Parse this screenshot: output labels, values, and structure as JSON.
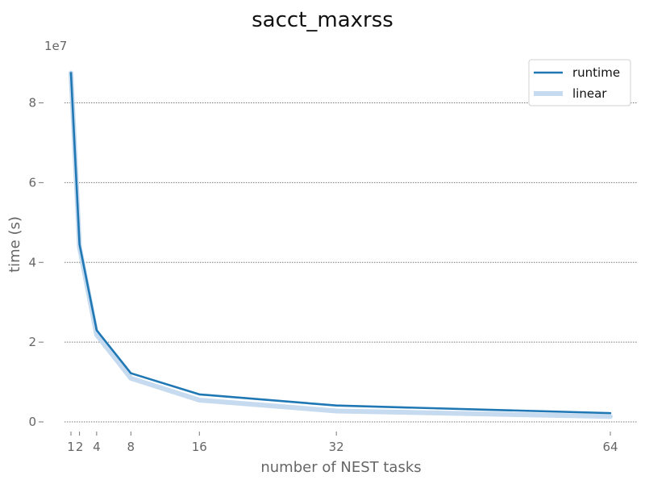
{
  "chart_data": {
    "type": "line",
    "title": "sacct_maxrss",
    "xlabel": "number of NEST tasks",
    "ylabel": "time (s)",
    "y_offset_label": "1e7",
    "x": [
      1,
      2,
      4,
      8,
      16,
      32,
      64
    ],
    "x_ticks": [
      1,
      2,
      4,
      8,
      16,
      32,
      64
    ],
    "x_tick_labels": [
      "1",
      "2",
      "4",
      "8",
      "16",
      "32",
      "64"
    ],
    "y_ticks": [
      0,
      2,
      4,
      6,
      8
    ],
    "y_tick_labels": [
      "0",
      "2",
      "4",
      "6",
      "8"
    ],
    "ylim": [
      0,
      8.8
    ],
    "xlim": [
      1,
      64
    ],
    "grid": "horizontal dotted",
    "legend_position": "top-right",
    "series": [
      {
        "name": "runtime",
        "values": [
          8.75,
          4.45,
          2.3,
          1.22,
          0.69,
          0.41,
          0.22
        ],
        "color": "#1f77b4"
      },
      {
        "name": "linear",
        "values": [
          8.75,
          4.375,
          2.1875,
          1.09375,
          0.546875,
          0.2734375,
          0.13671875
        ],
        "color": "#c6dbef"
      }
    ]
  }
}
